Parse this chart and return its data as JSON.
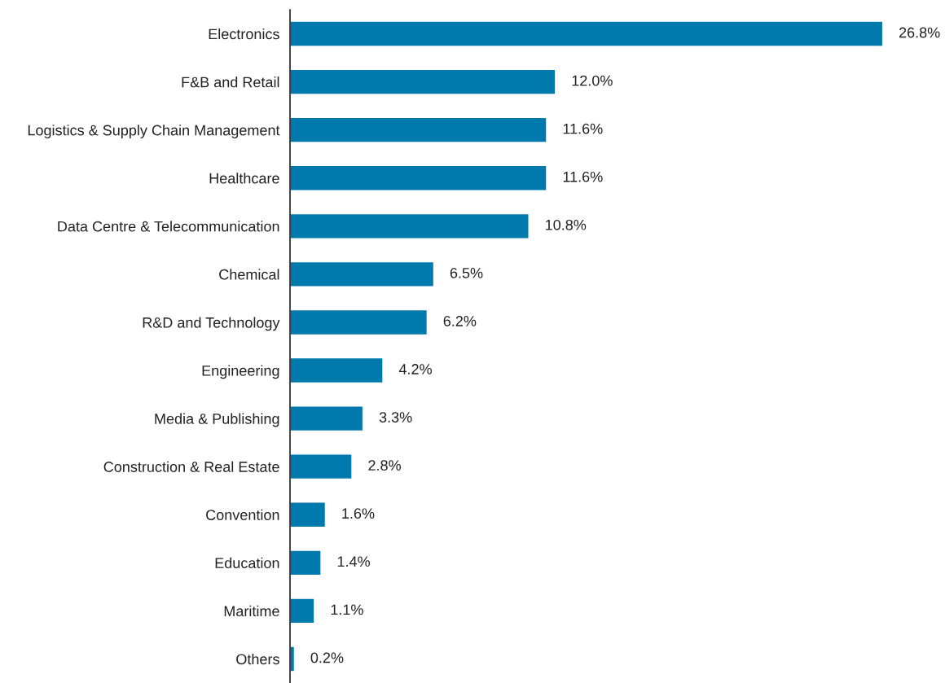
{
  "chart_data": {
    "type": "bar",
    "orientation": "horizontal",
    "categories": [
      "Electronics",
      "F&B and Retail",
      "Logistics & Supply Chain Management",
      "Healthcare",
      "Data Centre & Telecommunication",
      "Chemical",
      "R&D and Technology",
      "Engineering",
      "Media & Publishing",
      "Construction & Real Estate",
      "Convention",
      "Education",
      "Maritime",
      "Others"
    ],
    "values": [
      26.8,
      12.0,
      11.6,
      11.6,
      10.8,
      6.5,
      6.2,
      4.2,
      3.3,
      2.8,
      1.6,
      1.4,
      1.1,
      0.2
    ],
    "value_labels": [
      "26.8%",
      "12.0%",
      "11.6%",
      "11.6%",
      "10.8%",
      "6.5%",
      "6.2%",
      "4.2%",
      "3.3%",
      "2.8%",
      "1.6%",
      "1.4%",
      "1.1%",
      "0.2%"
    ],
    "color": "#0079ad",
    "tick_labels": "y",
    "grid": false,
    "legend": false
  }
}
